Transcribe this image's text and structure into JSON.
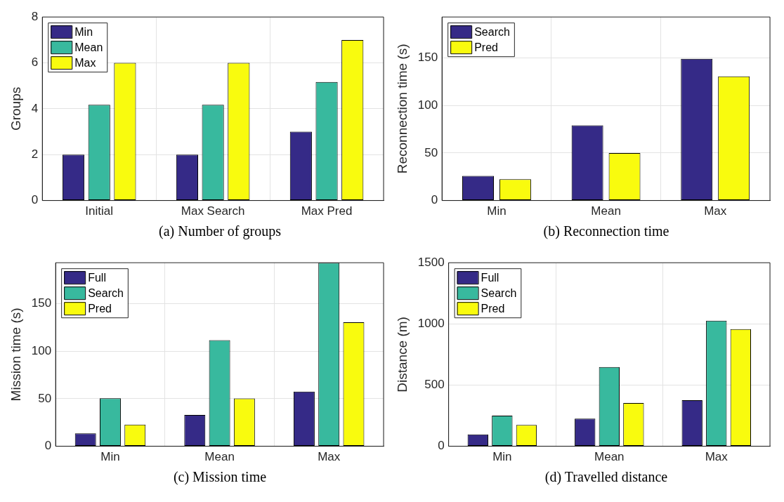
{
  "chart_data": [
    {
      "type": "bar",
      "title": "(a)  Number of groups",
      "ylabel": "Groups",
      "categories": [
        "Initial",
        "Max Search",
        "Max Pred"
      ],
      "series": [
        {
          "name": "Min",
          "color": "#352a87",
          "values": [
            2,
            2,
            3
          ]
        },
        {
          "name": "Mean",
          "color": "#38b99e",
          "values": [
            4.17,
            4.17,
            5.17
          ]
        },
        {
          "name": "Max",
          "color": "#f9fb0e",
          "values": [
            6,
            6,
            7
          ]
        }
      ],
      "ylim": [
        0,
        8
      ],
      "yticks": [
        0,
        2,
        4,
        6,
        8
      ],
      "grid": true,
      "legend": "top left"
    },
    {
      "type": "bar",
      "title": "(b)  Reconnection time",
      "ylabel": "Reconnection time (s)",
      "categories": [
        "Min",
        "Mean",
        "Max"
      ],
      "series": [
        {
          "name": "Search",
          "color": "#352a87",
          "values": [
            26,
            79,
            149
          ]
        },
        {
          "name": "Pred",
          "color": "#f9fb0e",
          "values": [
            22.5,
            50,
            130.5
          ]
        }
      ],
      "ylim": [
        0,
        193
      ],
      "yticks": [
        0,
        50,
        100,
        150
      ],
      "grid": true,
      "legend": "top left"
    },
    {
      "type": "bar",
      "title": "(c)  Mission time",
      "ylabel": "Mission time (s)",
      "categories": [
        "Min",
        "Mean",
        "Max"
      ],
      "series": [
        {
          "name": "Full",
          "color": "#352a87",
          "values": [
            13.5,
            33,
            57.5
          ]
        },
        {
          "name": "Search",
          "color": "#38b99e",
          "values": [
            50.5,
            111.6,
            193
          ]
        },
        {
          "name": "Pred",
          "color": "#f9fb0e",
          "values": [
            22.7,
            50.3,
            130.3
          ]
        }
      ],
      "ylim": [
        0,
        193
      ],
      "yticks": [
        0,
        50,
        100,
        150
      ],
      "grid": true,
      "legend": "top left"
    },
    {
      "type": "bar",
      "title": "(d)  Travelled distance",
      "ylabel": "Distance (m)",
      "categories": [
        "Min",
        "Mean",
        "Max"
      ],
      "series": [
        {
          "name": "Full",
          "color": "#352a87",
          "values": [
            96,
            226,
            376
          ]
        },
        {
          "name": "Search",
          "color": "#38b99e",
          "values": [
            250,
            647,
            1027
          ]
        },
        {
          "name": "Pred",
          "color": "#f9fb0e",
          "values": [
            174,
            353,
            957
          ]
        }
      ],
      "ylim": [
        0,
        1500
      ],
      "yticks": [
        0,
        500,
        1000,
        1500
      ],
      "grid": true,
      "legend": "top left"
    }
  ]
}
